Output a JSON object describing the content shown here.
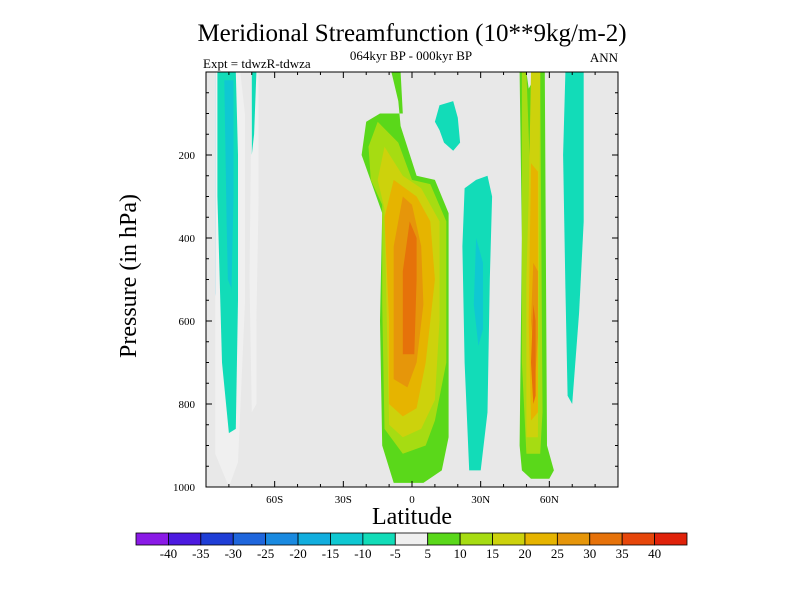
{
  "chart_data": {
    "type": "heatmap",
    "title": "Meridional Streamfunction (10**9kg/m-2)",
    "subtitle": "064kyr BP - 000kyr BP",
    "left_label": "Expt = tdwzR-tdwza",
    "right_label": "ANN",
    "xlabel": "Latitude",
    "ylabel": "Pressure (in hPa)",
    "xlim": [
      -90,
      90
    ],
    "ylim": [
      0,
      1000
    ],
    "y_reversed": true,
    "x_ticks": [
      {
        "value": -60,
        "label": "60S"
      },
      {
        "value": -30,
        "label": "30S"
      },
      {
        "value": 0,
        "label": "0"
      },
      {
        "value": 30,
        "label": "30N"
      },
      {
        "value": 60,
        "label": "60N"
      }
    ],
    "y_ticks": [
      {
        "value": 200,
        "label": "200"
      },
      {
        "value": 400,
        "label": "400"
      },
      {
        "value": 600,
        "label": "600"
      },
      {
        "value": 800,
        "label": "800"
      },
      {
        "value": 1000,
        "label": "1000"
      }
    ],
    "background_color": "#e8e8e8",
    "colorbar": {
      "labels": [
        "-40",
        "-35",
        "-30",
        "-25",
        "-20",
        "-15",
        "-10",
        "-5",
        "5",
        "10",
        "15",
        "20",
        "25",
        "30",
        "35",
        "40"
      ],
      "colors": [
        "#8a1ae6",
        "#4c1ae0",
        "#1f3ed6",
        "#1f66dc",
        "#1a8ae0",
        "#12aede",
        "#0fc8d2",
        "#12dcb8",
        "#f0f0f0",
        "#5ad81a",
        "#a6dc12",
        "#cdd20c",
        "#e6b400",
        "#e6960a",
        "#e6720a",
        "#e6460a",
        "#e0220a"
      ]
    },
    "regions": [
      {
        "level": 5,
        "outline": [
          [
            -86,
            0
          ],
          [
            -82,
            0
          ],
          [
            -82,
            260
          ],
          [
            -84,
            440
          ],
          [
            -86,
            540
          ],
          [
            -86,
            900
          ]
        ]
      },
      {
        "level": 8,
        "outline": [
          [
            -86,
            0
          ],
          [
            -75,
            0
          ],
          [
            -73,
            100
          ],
          [
            -73,
            560
          ],
          [
            -76,
            940
          ],
          [
            -80,
            1000
          ],
          [
            -86,
            920
          ]
        ]
      },
      {
        "level": 7,
        "outline": [
          [
            -85,
            0
          ],
          [
            -77,
            0
          ],
          [
            -76,
            200
          ],
          [
            -76,
            550
          ],
          [
            -77,
            860
          ],
          [
            -80,
            870
          ],
          [
            -83,
            700
          ],
          [
            -85,
            300
          ]
        ]
      },
      {
        "level": 6,
        "outline": [
          [
            -82,
            20
          ],
          [
            -78,
            20
          ],
          [
            -78,
            300
          ],
          [
            -79,
            560
          ],
          [
            -80,
            620
          ],
          [
            -81,
            360
          ]
        ]
      },
      {
        "level": 7,
        "outline": [
          [
            -82,
            480
          ],
          [
            -79,
            520
          ],
          [
            -78,
            640
          ],
          [
            -80,
            700
          ],
          [
            -82,
            600
          ]
        ]
      },
      {
        "level": 8,
        "outline": [
          [
            -70,
            0
          ],
          [
            -67,
            0
          ],
          [
            -67,
            300
          ],
          [
            -68,
            600
          ],
          [
            -68,
            800
          ],
          [
            -70,
            820
          ],
          [
            -71,
            500
          ]
        ]
      },
      {
        "level": 7,
        "outline": [
          [
            -70,
            0
          ],
          [
            -68,
            0
          ],
          [
            -69,
            150
          ],
          [
            -70,
            200
          ]
        ]
      },
      {
        "level": 9,
        "outline": [
          [
            -9,
            0
          ],
          [
            -5,
            0
          ],
          [
            -4,
            100
          ],
          [
            -14,
            100
          ],
          [
            -20,
            120
          ],
          [
            -22,
            200
          ],
          [
            -13,
            340
          ],
          [
            -14,
            600
          ],
          [
            -13,
            900
          ],
          [
            -8,
            990
          ],
          [
            5,
            990
          ],
          [
            13,
            960
          ],
          [
            16,
            880
          ],
          [
            16,
            340
          ],
          [
            10,
            260
          ],
          [
            2,
            250
          ],
          [
            -5,
            130
          ],
          [
            -6,
            70
          ]
        ]
      },
      {
        "level": 10,
        "outline": [
          [
            -15,
            120
          ],
          [
            -19,
            180
          ],
          [
            -18,
            260
          ],
          [
            -13,
            320
          ],
          [
            -13,
            560
          ],
          [
            -12,
            860
          ],
          [
            -4,
            920
          ],
          [
            6,
            900
          ],
          [
            10,
            840
          ],
          [
            15,
            700
          ],
          [
            15,
            360
          ],
          [
            8,
            270
          ],
          [
            0,
            260
          ],
          [
            -6,
            170
          ]
        ]
      },
      {
        "level": 11,
        "outline": [
          [
            -12,
            180
          ],
          [
            -15,
            260
          ],
          [
            -12,
            330
          ],
          [
            -11,
            600
          ],
          [
            -10,
            850
          ],
          [
            -4,
            880
          ],
          [
            4,
            860
          ],
          [
            10,
            790
          ],
          [
            12,
            600
          ],
          [
            12,
            360
          ],
          [
            4,
            280
          ],
          [
            -4,
            250
          ]
        ]
      },
      {
        "level": 12,
        "outline": [
          [
            -8,
            260
          ],
          [
            -12,
            350
          ],
          [
            -10,
            600
          ],
          [
            -10,
            800
          ],
          [
            -4,
            830
          ],
          [
            2,
            810
          ],
          [
            6,
            700
          ],
          [
            10,
            500
          ],
          [
            8,
            360
          ],
          [
            2,
            300
          ]
        ]
      },
      {
        "level": 13,
        "outline": [
          [
            -4,
            300
          ],
          [
            -8,
            420
          ],
          [
            -8,
            620
          ],
          [
            -8,
            740
          ],
          [
            -2,
            760
          ],
          [
            2,
            700
          ],
          [
            5,
            560
          ],
          [
            4,
            420
          ],
          [
            0,
            320
          ]
        ]
      },
      {
        "level": 14,
        "outline": [
          [
            -1,
            360
          ],
          [
            -4,
            480
          ],
          [
            -4,
            680
          ],
          [
            1,
            680
          ],
          [
            2,
            500
          ],
          [
            2,
            400
          ]
        ]
      },
      {
        "level": 7,
        "outline": [
          [
            10,
            120
          ],
          [
            12,
            80
          ],
          [
            18,
            70
          ],
          [
            20,
            110
          ],
          [
            21,
            170
          ],
          [
            18,
            190
          ],
          [
            14,
            170
          ],
          [
            12,
            140
          ]
        ]
      },
      {
        "level": 7,
        "outline": [
          [
            23,
            280
          ],
          [
            28,
            260
          ],
          [
            33,
            250
          ],
          [
            35,
            300
          ],
          [
            34,
            500
          ],
          [
            33,
            820
          ],
          [
            30,
            960
          ],
          [
            25,
            960
          ],
          [
            23,
            700
          ],
          [
            22,
            420
          ]
        ]
      },
      {
        "level": 6,
        "outline": [
          [
            28,
            400
          ],
          [
            31,
            460
          ],
          [
            31,
            620
          ],
          [
            29,
            660
          ],
          [
            27,
            560
          ]
        ]
      },
      {
        "level": 9,
        "outline": [
          [
            47,
            0
          ],
          [
            50,
            0
          ],
          [
            51,
            40
          ],
          [
            55,
            0
          ],
          [
            58,
            0
          ],
          [
            59,
            900
          ],
          [
            62,
            960
          ],
          [
            60,
            980
          ],
          [
            52,
            980
          ],
          [
            48,
            960
          ],
          [
            47,
            900
          ],
          [
            48,
            400
          ]
        ]
      },
      {
        "level": 10,
        "outline": [
          [
            48,
            0
          ],
          [
            50,
            0
          ],
          [
            52,
            300
          ],
          [
            53,
            0
          ],
          [
            56,
            0
          ],
          [
            57,
            820
          ],
          [
            56,
            920
          ],
          [
            50,
            920
          ],
          [
            48,
            700
          ],
          [
            48,
            200
          ]
        ]
      },
      {
        "level": 11,
        "outline": [
          [
            52,
            0
          ],
          [
            56,
            0
          ],
          [
            55,
            880
          ],
          [
            50,
            880
          ],
          [
            50,
            500
          ],
          [
            51,
            300
          ]
        ]
      },
      {
        "level": 12,
        "outline": [
          [
            52,
            220
          ],
          [
            55,
            240
          ],
          [
            55,
            820
          ],
          [
            52,
            840
          ],
          [
            51,
            600
          ]
        ]
      },
      {
        "level": 13,
        "outline": [
          [
            53,
            460
          ],
          [
            55,
            480
          ],
          [
            55,
            640
          ],
          [
            54,
            720
          ],
          [
            52,
            600
          ]
        ]
      },
      {
        "level": 14,
        "outline": [
          [
            53,
            560
          ],
          [
            54,
            600
          ],
          [
            54,
            780
          ],
          [
            53,
            800
          ],
          [
            52,
            700
          ]
        ]
      },
      {
        "level": 7,
        "outline": [
          [
            67,
            0
          ],
          [
            75,
            0
          ],
          [
            75,
            360
          ],
          [
            73,
            580
          ],
          [
            70,
            800
          ],
          [
            68,
            780
          ],
          [
            67,
            520
          ],
          [
            66,
            200
          ]
        ]
      }
    ]
  }
}
